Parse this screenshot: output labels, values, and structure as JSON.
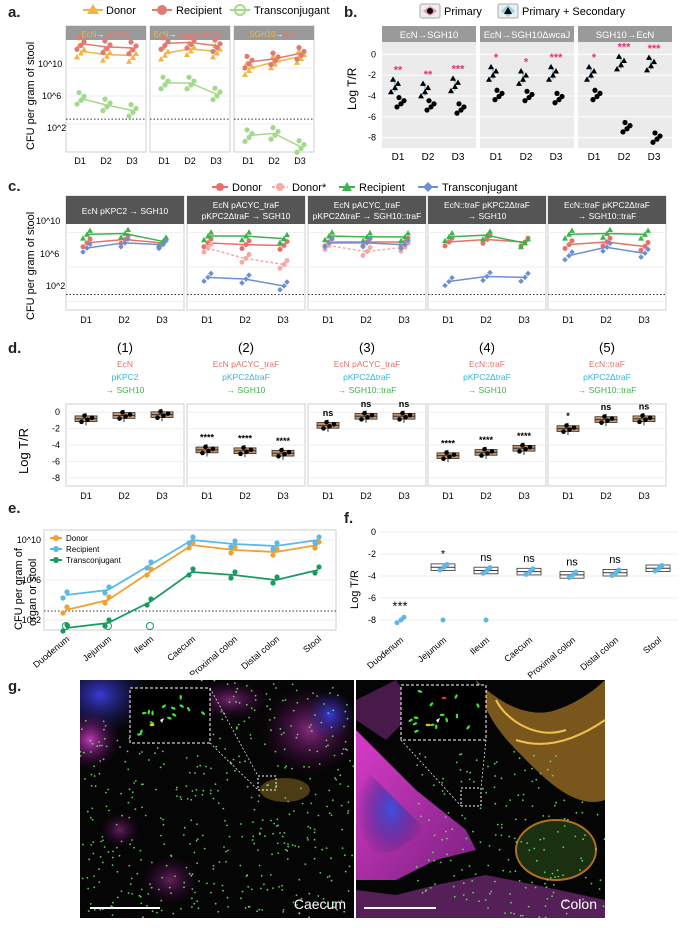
{
  "panels": {
    "a": "a.",
    "b": "b.",
    "c": "c.",
    "d": "d.",
    "e": "e.",
    "f": "f.",
    "g": "g."
  },
  "colors": {
    "donor": "#f2b347",
    "donor_c": "#e8706a",
    "donor_star": "#f4aaa6",
    "recipient_a": "#e07a72",
    "transconjugant_a": "#a3d98a",
    "recipient_c": "#3cb44b",
    "transconjugant_c": "#6e8fd6",
    "donor_e": "#f0a030",
    "recipient_e": "#5bb8e8",
    "transconjugant_e": "#1a9a60",
    "sig": "#e8336b",
    "strip": "#9a9a9a",
    "strip_dark": "#555555",
    "box_d": "#c8956a",
    "cyan": "#36b7d8"
  },
  "a": {
    "legend": [
      "Donor",
      "Recipient",
      "Transconjugant"
    ],
    "ylabel": "CFU per gram of stool",
    "ticks": [
      "10^10",
      "10^6",
      "10^2"
    ],
    "xticks": [
      "D1",
      "D2",
      "D3"
    ],
    "strips": [
      {
        "left": "EcN",
        "arrow": "→",
        "right": "SGH10"
      },
      {
        "left": "EcN",
        "arrow": "→",
        "right": "SGH10ΔwcaJ"
      },
      {
        "left": "SGH10",
        "arrow": "→",
        "right": "EcN"
      }
    ]
  },
  "b": {
    "legend": [
      "Primary",
      "Primary + Secondary"
    ],
    "ylabel": "Log T/R",
    "yticks": [
      "0",
      "-2",
      "-4",
      "-6",
      "-8"
    ],
    "xticks": [
      "D1",
      "D2",
      "D3"
    ],
    "strips": [
      "EcN→SGH10",
      "EcN→SGH10ΔwcaJ",
      "SGH10→EcN"
    ],
    "sig": [
      [
        "**",
        "**",
        "***"
      ],
      [
        "*",
        "*",
        "***"
      ],
      [
        "*",
        "***",
        "***"
      ]
    ]
  },
  "c": {
    "legend": [
      "Donor",
      "Donor*",
      "Recipient",
      "Transconjugant"
    ],
    "ylabel": "CFU per gram of stool",
    "ticks": [
      "10^10",
      "10^6",
      "10^2"
    ],
    "xticks": [
      "D1",
      "D2",
      "D3"
    ],
    "strips": [
      [
        "EcN pKPC2 → SGH10"
      ],
      [
        "EcN pACYC_traF",
        "pKPC2ΔtraF → SGH10"
      ],
      [
        "EcN pACYC_traF",
        "pKPC2ΔtraF → SGH10::traF"
      ],
      [
        "EcN::traF pKPC2ΔtraF",
        "→ SGH10"
      ],
      [
        "EcN::traF pKPC2ΔtraF",
        "→ SGH10::traF"
      ]
    ]
  },
  "d": {
    "ylabel": "Log T/R",
    "yticks": [
      "0",
      "-2",
      "-4",
      "-6",
      "-8"
    ],
    "xticks": [
      "D1",
      "D2",
      "D3"
    ],
    "groups": [
      {
        "num": "(1)",
        "l1": "EcN",
        "l2": "pKPC2",
        "l3": "→ SGH10",
        "sig": [
          "",
          "",
          ""
        ]
      },
      {
        "num": "(2)",
        "l1": "EcN pACYC_traF",
        "l2": "pKPC2ΔtraF",
        "l3": "→ SGH10",
        "sig": [
          "****",
          "****",
          "****"
        ]
      },
      {
        "num": "(3)",
        "l1": "EcN pACYC_traF",
        "l2": "pKPC2ΔtraF",
        "l3": "→ SGH10::traF",
        "sig": [
          "ns",
          "ns",
          "ns"
        ]
      },
      {
        "num": "(4)",
        "l1": "EcN::traF",
        "l2": "pKPC2ΔtraF",
        "l3": "→ SGH10",
        "sig": [
          "****",
          "****",
          "****"
        ]
      },
      {
        "num": "(5)",
        "l1": "EcN::traF",
        "l2": "pKPC2ΔtraF",
        "l3": "→ SGH10::traF",
        "sig": [
          "*",
          "ns",
          "ns"
        ]
      }
    ]
  },
  "e": {
    "legend": [
      "Donor",
      "Recipient",
      "Transconjugant"
    ],
    "ylabel1": "CFU per gram of",
    "ylabel2": "organ or stool",
    "ticks": [
      "10^10",
      "10^6",
      "10^2"
    ],
    "xticks": [
      "Duodenum",
      "Jejunum",
      "Ileum",
      "Caecum",
      "Proximal colon",
      "Distal colon",
      "Stool"
    ]
  },
  "f": {
    "ylabel": "Log T/R",
    "yticks": [
      "0",
      "-2",
      "-4",
      "-6",
      "-8"
    ],
    "xticks": [
      "Duodenum",
      "Jejunum",
      "Ileum",
      "Caecum",
      "Proximal colon",
      "Distal colon",
      "Stool"
    ],
    "sig": [
      "***",
      "*",
      "ns",
      "ns",
      "ns",
      "ns",
      ""
    ]
  },
  "g": {
    "left": "Caecum",
    "right": "Colon"
  },
  "chart_data": [
    {
      "panel": "a",
      "type": "scatter",
      "xlabel": "",
      "ylabel": "CFU per gram of stool",
      "categories": [
        "D1",
        "D2",
        "D3"
      ],
      "series": [
        {
          "name": "Donor",
          "facet": "EcN→SGH10",
          "values": [
            9.2,
            8.9,
            8.8
          ]
        },
        {
          "name": "Recipient",
          "facet": "EcN→SGH10",
          "values": [
            9.9,
            9.6,
            9.5
          ]
        },
        {
          "name": "Transconjugant",
          "facet": "EcN→SGH10",
          "values": [
            4.9,
            4.3,
            3.8
          ]
        },
        {
          "name": "Donor",
          "facet": "EcN→SGH10ΔwcaJ",
          "values": [
            9.0,
            9.4,
            9.2
          ]
        },
        {
          "name": "Recipient",
          "facet": "EcN→SGH10ΔwcaJ",
          "values": [
            9.9,
            10.0,
            9.7
          ]
        },
        {
          "name": "Transconjugant",
          "facet": "EcN→SGH10ΔwcaJ",
          "values": [
            6.3,
            6.3,
            5.3
          ]
        },
        {
          "name": "Donor",
          "facet": "SGH10→EcN",
          "values": [
            7.6,
            8.2,
            8.7
          ]
        },
        {
          "name": "Recipient",
          "facet": "SGH10→EcN",
          "values": [
            8.2,
            8.5,
            9.0
          ]
        },
        {
          "name": "Transconjugant",
          "facet": "SGH10→EcN",
          "values": [
            1.5,
            1.7,
            0.5
          ]
        }
      ]
    },
    {
      "panel": "b",
      "type": "scatter",
      "ylabel": "Log T/R",
      "ylim": [
        -9,
        1
      ],
      "categories": [
        "D1",
        "D2",
        "D3"
      ],
      "series": [
        {
          "name": "Primary",
          "facet": "EcN→SGH10",
          "values": [
            -4.6,
            -4.9,
            -5.2
          ]
        },
        {
          "name": "Primary + Secondary",
          "facet": "EcN→SGH10",
          "values": [
            -3.0,
            -3.4,
            -2.9
          ]
        },
        {
          "name": "Primary",
          "facet": "EcN→SGH10ΔwcaJ",
          "values": [
            -3.9,
            -4.0,
            -4.2
          ]
        },
        {
          "name": "Primary + Secondary",
          "facet": "EcN→SGH10ΔwcaJ",
          "values": [
            -1.8,
            -2.2,
            -1.8
          ]
        },
        {
          "name": "Primary",
          "facet": "SGH10→EcN",
          "values": [
            -3.9,
            -7.0,
            -8.0
          ]
        },
        {
          "name": "Primary + Secondary",
          "facet": "SGH10→EcN",
          "values": [
            -1.8,
            -0.8,
            -0.9
          ]
        }
      ]
    },
    {
      "panel": "c",
      "type": "scatter",
      "ylabel": "CFU per gram of stool",
      "categories": [
        "D1",
        "D2",
        "D3"
      ],
      "series": [
        {
          "name": "Donor",
          "facet": "1",
          "values": [
            8.8,
            9.2,
            8.8
          ]
        },
        {
          "name": "Recipient",
          "facet": "1",
          "values": [
            9.8,
            9.9,
            9.0
          ]
        },
        {
          "name": "Transconjugant",
          "facet": "1",
          "values": [
            8.2,
            8.8,
            8.6
          ]
        },
        {
          "name": "Donor",
          "facet": "2",
          "values": [
            8.8,
            8.6,
            8.5
          ]
        },
        {
          "name": "Donor*",
          "facet": "2",
          "values": [
            8.2,
            7.0,
            6.3
          ]
        },
        {
          "name": "Recipient",
          "facet": "2",
          "values": [
            9.6,
            9.6,
            9.3
          ]
        },
        {
          "name": "Transconjugant",
          "facet": "2",
          "values": [
            4.8,
            4.6,
            3.8
          ]
        },
        {
          "name": "Donor",
          "facet": "3",
          "values": [
            8.9,
            8.9,
            8.9
          ]
        },
        {
          "name": "Donor*",
          "facet": "3",
          "values": [
            8.5,
            7.8,
            8.3
          ]
        },
        {
          "name": "Recipient",
          "facet": "3",
          "values": [
            9.6,
            9.5,
            9.5
          ]
        },
        {
          "name": "Transconjugant",
          "facet": "3",
          "values": [
            8.8,
            8.8,
            8.6
          ]
        },
        {
          "name": "Donor",
          "facet": "4",
          "values": [
            8.9,
            9.2,
            8.9
          ]
        },
        {
          "name": "Recipient",
          "facet": "4",
          "values": [
            9.5,
            9.7,
            8.8
          ]
        },
        {
          "name": "Transconjugant",
          "facet": "4",
          "values": [
            4.3,
            4.9,
            4.8
          ]
        },
        {
          "name": "Donor",
          "facet": "5",
          "values": [
            8.6,
            8.9,
            8.4
          ]
        },
        {
          "name": "Recipient",
          "facet": "5",
          "values": [
            9.8,
            9.9,
            9.8
          ]
        },
        {
          "name": "Transconjugant",
          "facet": "5",
          "values": [
            7.3,
            8.3,
            7.6
          ]
        }
      ]
    },
    {
      "panel": "d",
      "type": "box",
      "ylabel": "Log T/R",
      "ylim": [
        -9,
        1
      ],
      "categories": [
        "D1",
        "D2",
        "D3"
      ],
      "series": [
        {
          "name": "(1)",
          "medians": [
            -0.8,
            -0.4,
            -0.3
          ]
        },
        {
          "name": "(2)",
          "medians": [
            -4.6,
            -4.7,
            -5.0
          ]
        },
        {
          "name": "(3)",
          "medians": [
            -1.6,
            -0.5,
            -0.5
          ]
        },
        {
          "name": "(4)",
          "medians": [
            -5.3,
            -4.9,
            -4.4
          ]
        },
        {
          "name": "(5)",
          "medians": [
            -2.0,
            -0.9,
            -0.8
          ]
        }
      ]
    },
    {
      "panel": "e",
      "type": "line",
      "ylabel": "CFU per gram of organ or stool",
      "categories": [
        "Duodenum",
        "Jejunum",
        "Ileum",
        "Caecum",
        "Proximal colon",
        "Distal colon",
        "Stool"
      ],
      "series": [
        {
          "name": "Donor",
          "values": [
            3.0,
            4.0,
            6.8,
            9.5,
            9.0,
            8.8,
            9.5
          ]
        },
        {
          "name": "Recipient",
          "values": [
            4.5,
            5.0,
            7.5,
            10.0,
            9.6,
            9.4,
            10.0
          ]
        },
        {
          "name": "Transconjugant",
          "values": [
            1.2,
            1.7,
            3.8,
            6.8,
            6.5,
            6.0,
            7.0
          ]
        }
      ]
    },
    {
      "panel": "f",
      "type": "box",
      "ylabel": "Log T/R",
      "ylim": [
        -9,
        1
      ],
      "categories": [
        "Duodenum",
        "Jejunum",
        "Ileum",
        "Caecum",
        "Proximal colon",
        "Distal colon",
        "Stool"
      ],
      "series": [
        {
          "name": "Log T/R",
          "medians": [
            -8.0,
            -3.2,
            -3.5,
            -3.6,
            -3.9,
            -3.7,
            -3.3
          ]
        }
      ]
    }
  ]
}
